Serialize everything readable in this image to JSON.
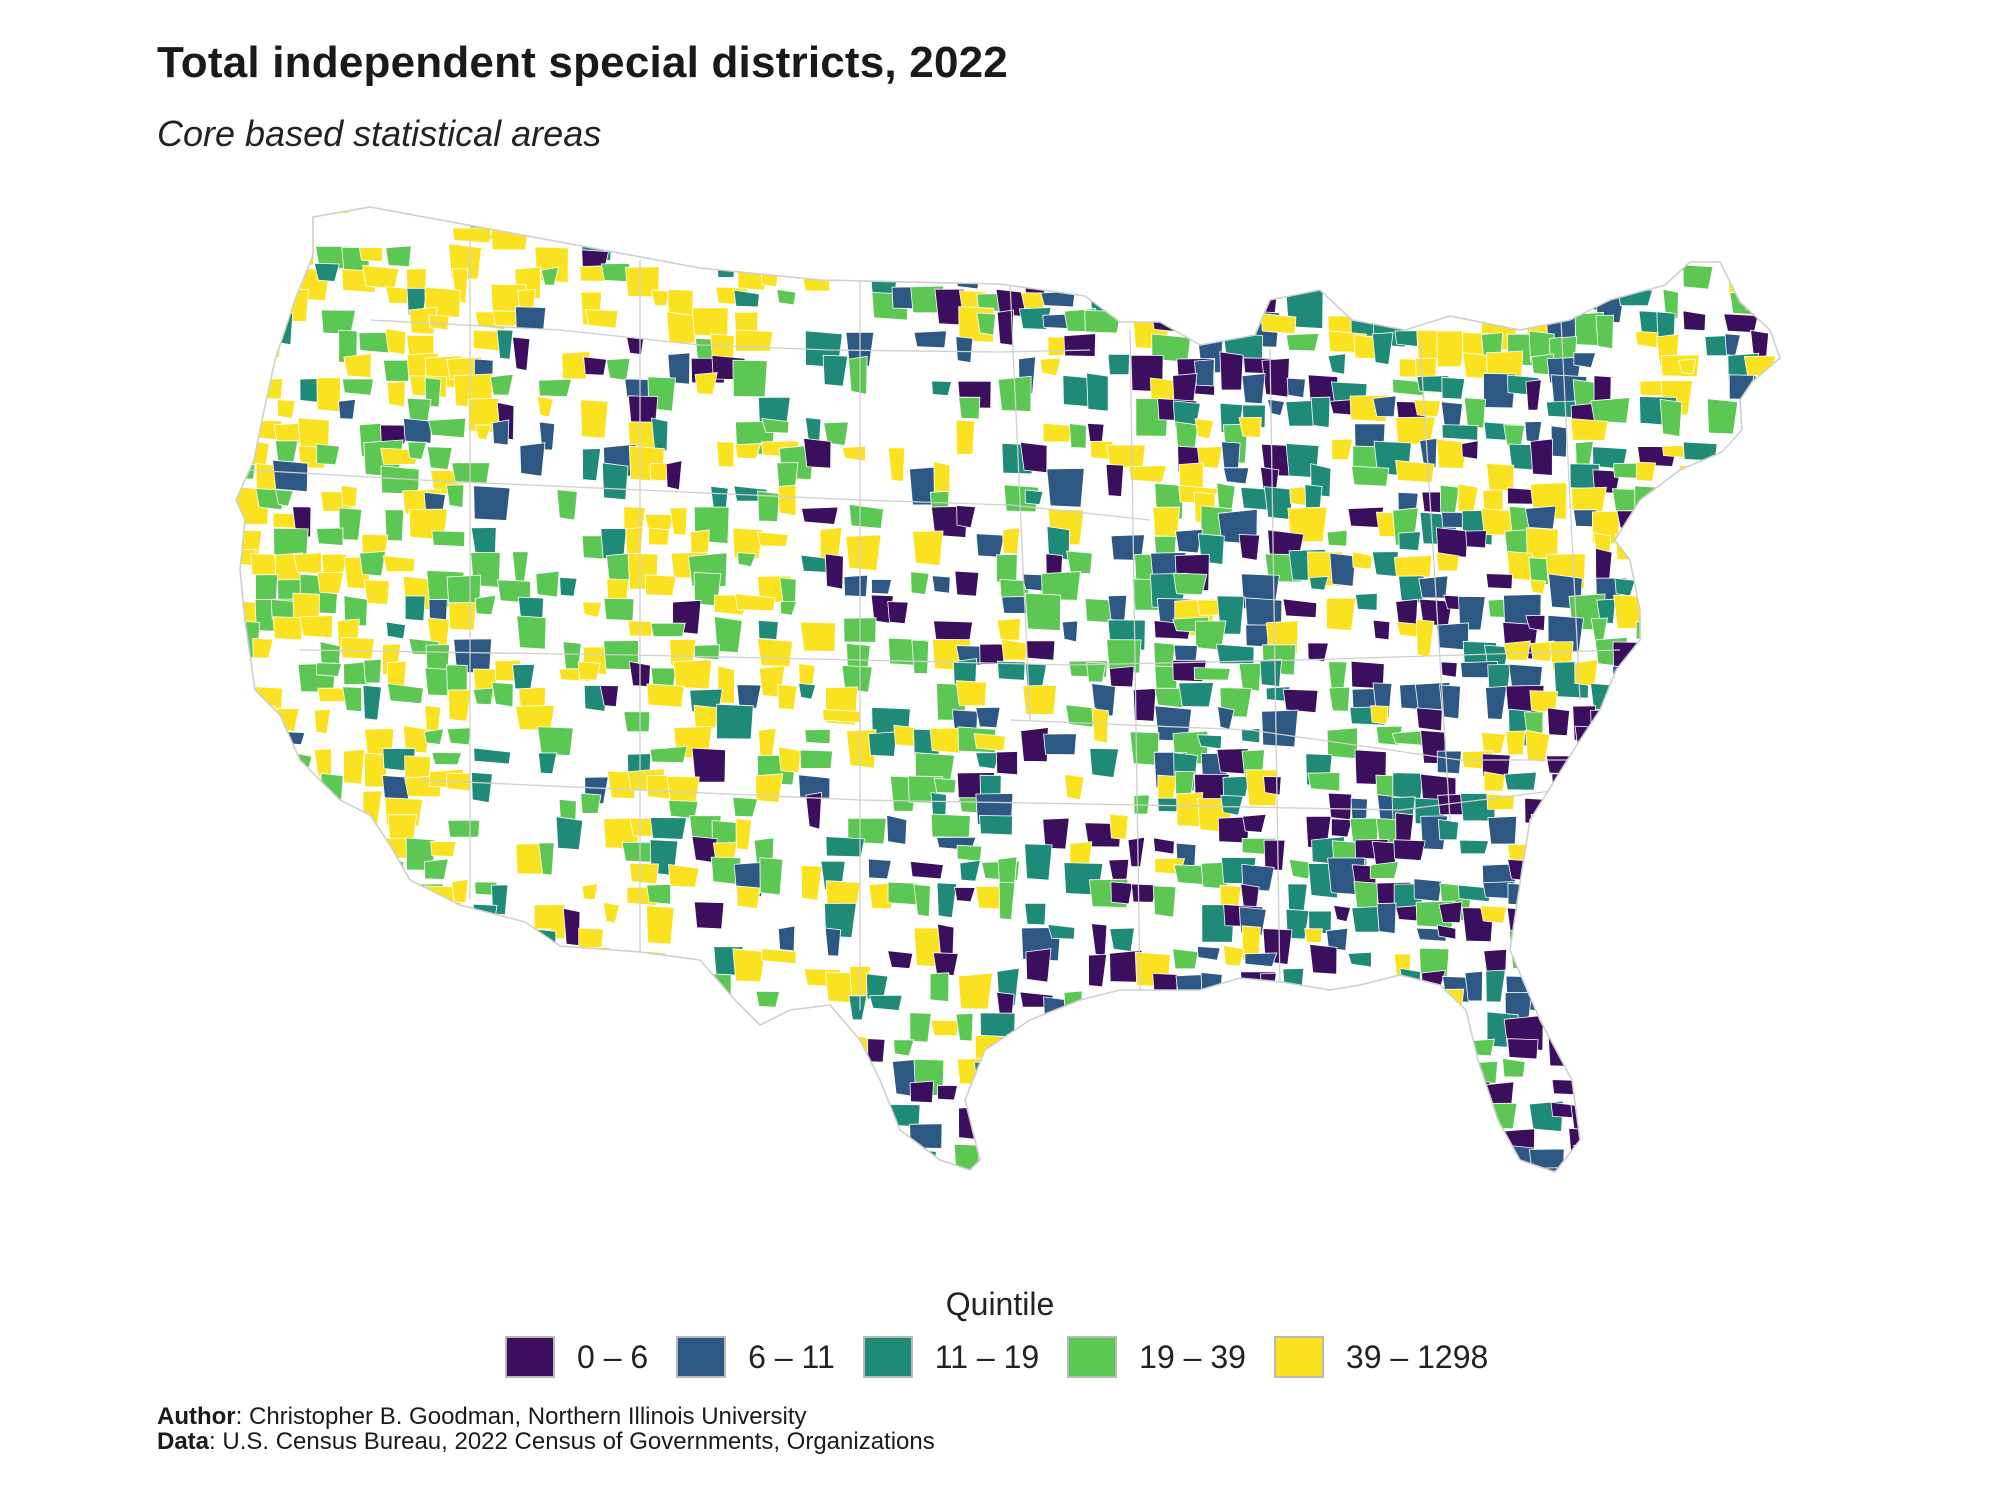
{
  "title": "Total independent special districts, 2022",
  "subtitle": "Core based statistical areas",
  "map": {
    "region": "Contiguous United States",
    "unit": "Core based statistical areas",
    "colors": {
      "q1": "#3b0f5e",
      "q2": "#2e5884",
      "q3": "#1f8a78",
      "q4": "#5cc853",
      "q5": "#fbe221",
      "no_data": "#ffffff",
      "border": "#cfcfcf"
    }
  },
  "legend": {
    "title": "Quintile",
    "items": [
      {
        "label": "0 – 6",
        "color": "#3b0f5e"
      },
      {
        "label": "6 – 11",
        "color": "#2e5884"
      },
      {
        "label": "11 – 19",
        "color": "#1f8a78"
      },
      {
        "label": "19 – 39",
        "color": "#5cc853"
      },
      {
        "label": "39 – 1298",
        "color": "#fbe221"
      }
    ]
  },
  "credits": {
    "author_label": "Author",
    "author_text": ": Christopher B. Goodman, Northern Illinois University",
    "data_label": "Data",
    "data_text": ": U.S. Census Bureau, 2022 Census of Governments, Organizations"
  }
}
